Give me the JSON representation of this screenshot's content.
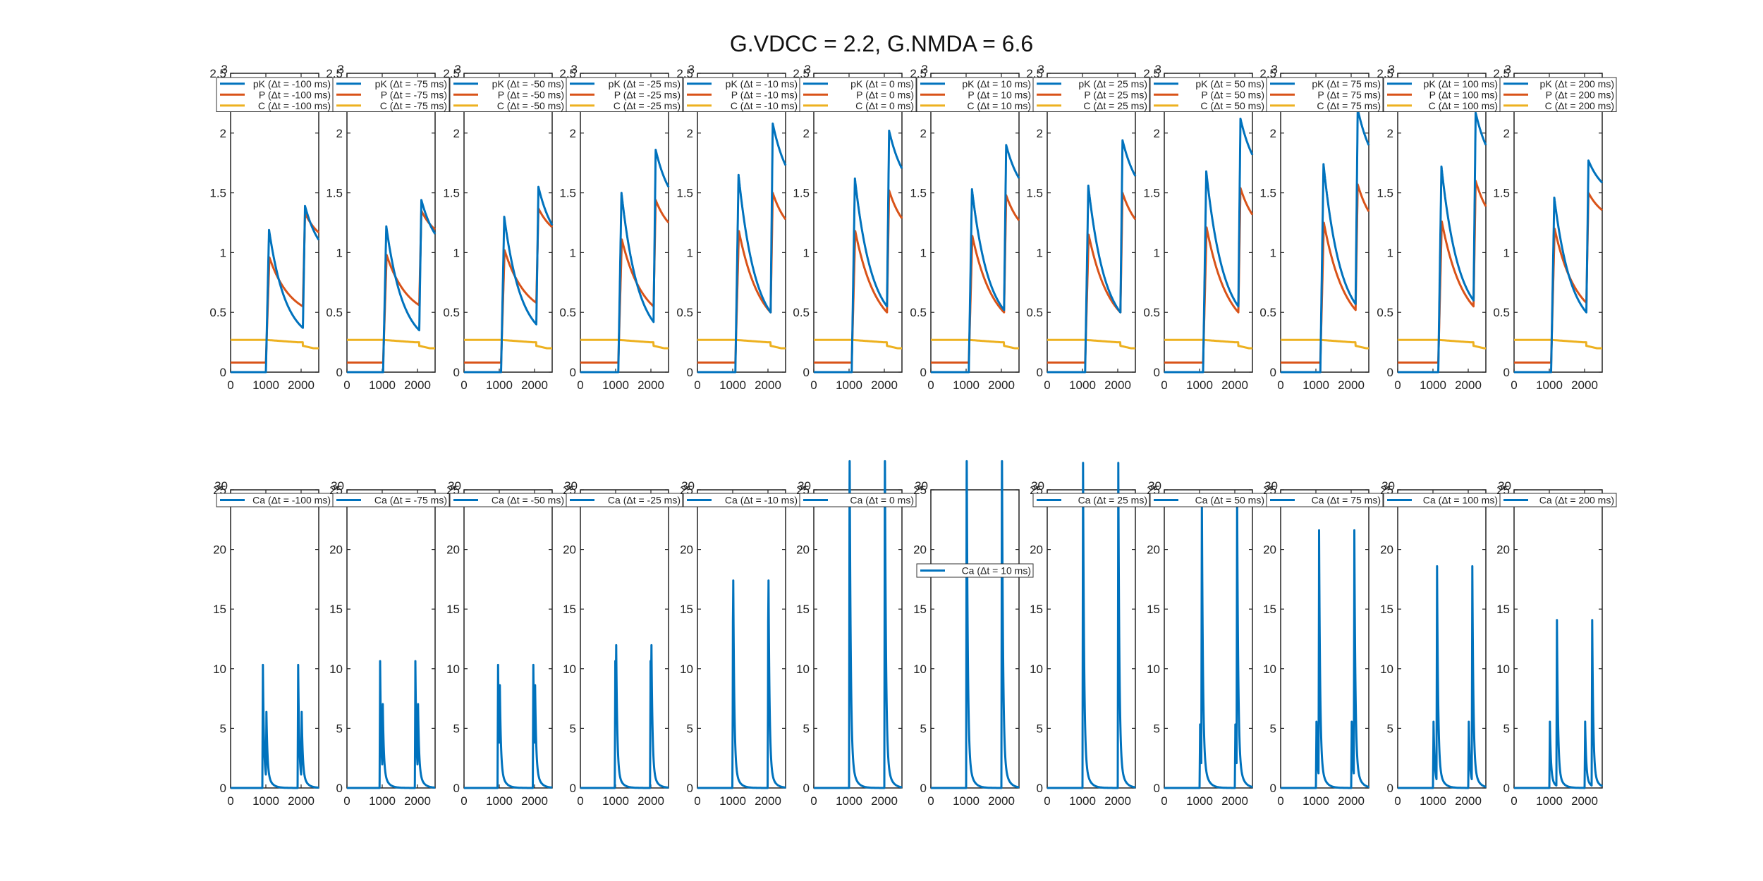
{
  "figure": {
    "title": "G.VDCC = 2.2, G.NMDA = 6.6",
    "colors": {
      "pK": "#0072BD",
      "P": "#D95319",
      "C": "#EDB120",
      "Ca": "#0072BD",
      "axis": "#222222",
      "background": "#ffffff"
    }
  },
  "chart_data": [
    {
      "type": "line",
      "row": "top",
      "title": "",
      "xlabel": "",
      "ylabel": "",
      "xlim": [
        0,
        2500
      ],
      "ylim": [
        0,
        2.5
      ],
      "xticks": [
        0,
        1000,
        2000
      ],
      "yticks": [
        0,
        0.5,
        1,
        1.5,
        2,
        2.5
      ],
      "ytick_labels": [
        "0",
        "0.5",
        "1",
        "1.5",
        "2",
        "2.5"
      ],
      "overflow_label": "3",
      "legend_placement": "top",
      "grid": false,
      "panels": [
        {
          "dt": -100,
          "legend": [
            "pK (Δt = -100 ms)",
            "P (Δt = -100 ms)",
            "C (Δt = -100 ms)"
          ],
          "pK": {
            "pre": 0.0,
            "peak1": 1.19,
            "dip": 0.37,
            "peak2": 1.39,
            "end": 0.9
          },
          "P": {
            "pre": 0.08,
            "peak1": 0.96,
            "dip": 0.55,
            "peak2": 1.33,
            "end": 1.05
          },
          "C": {
            "pre": 0.27,
            "mid": 0.22,
            "end": 0.2
          },
          "spike1": 1000,
          "spike2": 2050
        },
        {
          "dt": -75,
          "legend": [
            "pK (Δt = -75 ms)",
            "P (Δt = -75 ms)",
            "C (Δt = -75 ms)"
          ],
          "pK": {
            "pre": 0.0,
            "peak1": 1.22,
            "dip": 0.35,
            "peak2": 1.44,
            "end": 0.95
          },
          "P": {
            "pre": 0.08,
            "peak1": 0.98,
            "dip": 0.56,
            "peak2": 1.35,
            "end": 1.08
          },
          "C": {
            "pre": 0.27,
            "mid": 0.22,
            "end": 0.2
          },
          "spike1": 1025,
          "spike2": 2050
        },
        {
          "dt": -50,
          "legend": [
            "pK (Δt = -50 ms)",
            "P (Δt = -50 ms)",
            "C (Δt = -50 ms)"
          ],
          "pK": {
            "pre": 0.0,
            "peak1": 1.3,
            "dip": 0.4,
            "peak2": 1.55,
            "end": 1.0
          },
          "P": {
            "pre": 0.08,
            "peak1": 1.02,
            "dip": 0.58,
            "peak2": 1.37,
            "end": 1.1
          },
          "C": {
            "pre": 0.27,
            "mid": 0.22,
            "end": 0.2
          },
          "spike1": 1050,
          "spike2": 2050
        },
        {
          "dt": -25,
          "legend": [
            "pK (Δt = -25 ms)",
            "P (Δt = -25 ms)",
            "C (Δt = -25 ms)"
          ],
          "pK": {
            "pre": 0.0,
            "peak1": 1.5,
            "dip": 0.42,
            "peak2": 1.86,
            "end": 1.3
          },
          "P": {
            "pre": 0.08,
            "peak1": 1.11,
            "dip": 0.55,
            "peak2": 1.44,
            "end": 1.1
          },
          "C": {
            "pre": 0.27,
            "mid": 0.22,
            "end": 0.2
          },
          "spike1": 1075,
          "spike2": 2075
        },
        {
          "dt": -10,
          "legend": [
            "pK (Δt = -10 ms)",
            "P (Δt = -10 ms)",
            "C (Δt = -10 ms)"
          ],
          "pK": {
            "pre": 0.0,
            "peak1": 1.65,
            "dip": 0.5,
            "peak2": 2.08,
            "end": 1.45
          },
          "P": {
            "pre": 0.08,
            "peak1": 1.18,
            "dip": 0.5,
            "peak2": 1.5,
            "end": 1.1
          },
          "C": {
            "pre": 0.27,
            "mid": 0.22,
            "end": 0.2
          },
          "spike1": 1075,
          "spike2": 2075
        },
        {
          "dt": 0,
          "legend": [
            "pK (Δt = 0 ms)",
            "P (Δt = 0 ms)",
            "C (Δt = 0 ms)"
          ],
          "pK": {
            "pre": 0.0,
            "peak1": 1.62,
            "dip": 0.55,
            "peak2": 2.02,
            "end": 1.45
          },
          "P": {
            "pre": 0.08,
            "peak1": 1.18,
            "dip": 0.5,
            "peak2": 1.52,
            "end": 1.1
          },
          "C": {
            "pre": 0.27,
            "mid": 0.22,
            "end": 0.2
          },
          "spike1": 1075,
          "spike2": 2075
        },
        {
          "dt": 10,
          "legend": [
            "pK (Δt = 10 ms)",
            "P (Δt = 10 ms)",
            "C (Δt = 10 ms)"
          ],
          "pK": {
            "pre": 0.0,
            "peak1": 1.53,
            "dip": 0.52,
            "peak2": 1.9,
            "end": 1.4
          },
          "P": {
            "pre": 0.08,
            "peak1": 1.14,
            "dip": 0.5,
            "peak2": 1.48,
            "end": 1.1
          },
          "C": {
            "pre": 0.27,
            "mid": 0.22,
            "end": 0.2
          },
          "spike1": 1075,
          "spike2": 2075
        },
        {
          "dt": 25,
          "legend": [
            "pK (Δt = 25 ms)",
            "P (Δt = 25 ms)",
            "C (Δt = 25 ms)"
          ],
          "pK": {
            "pre": 0.0,
            "peak1": 1.56,
            "dip": 0.5,
            "peak2": 1.94,
            "end": 1.4
          },
          "P": {
            "pre": 0.08,
            "peak1": 1.15,
            "dip": 0.5,
            "peak2": 1.5,
            "end": 1.1
          },
          "C": {
            "pre": 0.27,
            "mid": 0.22,
            "end": 0.2
          },
          "spike1": 1075,
          "spike2": 2075
        },
        {
          "dt": 50,
          "legend": [
            "pK (Δt = 50 ms)",
            "P (Δt = 50 ms)",
            "C (Δt = 50 ms)"
          ],
          "pK": {
            "pre": 0.0,
            "peak1": 1.68,
            "dip": 0.55,
            "peak2": 2.12,
            "end": 1.55
          },
          "P": {
            "pre": 0.08,
            "peak1": 1.21,
            "dip": 0.5,
            "peak2": 1.54,
            "end": 1.12
          },
          "C": {
            "pre": 0.27,
            "mid": 0.22,
            "end": 0.2
          },
          "spike1": 1100,
          "spike2": 2100
        },
        {
          "dt": 75,
          "legend": [
            "pK (Δt = 75 ms)",
            "P (Δt = 75 ms)",
            "C (Δt = 75 ms)"
          ],
          "pK": {
            "pre": 0.0,
            "peak1": 1.74,
            "dip": 0.57,
            "peak2": 2.2,
            "end": 1.6
          },
          "P": {
            "pre": 0.08,
            "peak1": 1.25,
            "dip": 0.52,
            "peak2": 1.57,
            "end": 1.12
          },
          "C": {
            "pre": 0.27,
            "mid": 0.22,
            "end": 0.2
          },
          "spike1": 1125,
          "spike2": 2125
        },
        {
          "dt": 100,
          "legend": [
            "pK (Δt = 100 ms)",
            "P (Δt = 100 ms)",
            "C (Δt = 100 ms)"
          ],
          "pK": {
            "pre": 0.0,
            "peak1": 1.72,
            "dip": 0.6,
            "peak2": 2.17,
            "end": 1.6
          },
          "P": {
            "pre": 0.08,
            "peak1": 1.26,
            "dip": 0.55,
            "peak2": 1.6,
            "end": 1.15
          },
          "C": {
            "pre": 0.27,
            "mid": 0.22,
            "end": 0.2
          },
          "spike1": 1150,
          "spike2": 2150
        },
        {
          "dt": 200,
          "legend": [
            "pK (Δt = 200 ms)",
            "P (Δt = 200 ms)",
            "C (Δt = 200 ms)"
          ],
          "pK": {
            "pre": 0.0,
            "peak1": 1.46,
            "dip": 0.5,
            "peak2": 1.77,
            "end": 1.45
          },
          "P": {
            "pre": 0.08,
            "peak1": 1.2,
            "dip": 0.58,
            "peak2": 1.5,
            "end": 1.25
          },
          "C": {
            "pre": 0.27,
            "mid": 0.22,
            "end": 0.2
          },
          "spike1": 1050,
          "spike2": 2050
        }
      ]
    },
    {
      "type": "line",
      "row": "bottom",
      "title": "",
      "xlabel": "",
      "ylabel": "",
      "xlim": [
        0,
        2500
      ],
      "ylim": [
        0,
        25
      ],
      "xticks": [
        0,
        1000,
        2000
      ],
      "yticks": [
        0,
        5,
        10,
        15,
        20,
        25
      ],
      "ytick_labels": [
        "0",
        "5",
        "10",
        "15",
        "20",
        "25"
      ],
      "overflow_label": "30",
      "legend_placement": "top",
      "grid": false,
      "panels": [
        {
          "dt": -100,
          "legend": [
            "Ca (Δt = -100 ms)"
          ],
          "spike1": 1000,
          "spike2": 2000,
          "peak": 9.5,
          "second": 4.8,
          "lag": 100
        },
        {
          "dt": -75,
          "legend": [
            "Ca (Δt = -75 ms)"
          ],
          "spike1": 1000,
          "spike2": 2000,
          "peak": 9.5,
          "second": 4.9,
          "lag": 75
        },
        {
          "dt": -50,
          "legend": [
            "Ca (Δt = -50 ms)"
          ],
          "spike1": 1000,
          "spike2": 2000,
          "peak": 9.5,
          "second": 5.3,
          "lag": 50
        },
        {
          "dt": -25,
          "legend": [
            "Ca (Δt = -25 ms)"
          ],
          "spike1": 1000,
          "spike2": 2000,
          "peak": 9.5,
          "second": 6.5,
          "lag": 25
        },
        {
          "dt": -10,
          "legend": [
            "Ca (Δt = -10 ms)"
          ],
          "spike1": 1000,
          "spike2": 2000,
          "peak": 9.5,
          "second": 9.0,
          "lag": 10
        },
        {
          "dt": 0,
          "legend": [
            "Ca (Δt = 0 ms)"
          ],
          "spike1": 1000,
          "spike2": 2000,
          "peak": 27.2,
          "second": 27.2,
          "lag": 0
        },
        {
          "dt": 10,
          "legend": [
            "Ca (Δt = 10 ms)"
          ],
          "spike1": 1000,
          "spike2": 2000,
          "peak": 27.2,
          "second": 27.2,
          "lag": 10,
          "legend_position": "middle"
        },
        {
          "dt": 25,
          "legend": [
            "Ca (Δt = 25 ms)"
          ],
          "spike1": 1000,
          "spike2": 2000,
          "peak": 25.1,
          "second": 25.1,
          "lag": 25
        },
        {
          "dt": 50,
          "legend": [
            "Ca (Δt = 50 ms)"
          ],
          "spike1": 1000,
          "spike2": 2000,
          "peak": 4.6,
          "second": 21.4,
          "lag": 50
        },
        {
          "dt": 75,
          "legend": [
            "Ca (Δt = 75 ms)"
          ],
          "spike1": 1000,
          "spike2": 2000,
          "peak": 4.8,
          "second": 18.5,
          "lag": 75
        },
        {
          "dt": 100,
          "legend": [
            "Ca (Δt = 100 ms)"
          ],
          "spike1": 1000,
          "spike2": 2000,
          "peak": 4.8,
          "second": 16.6,
          "lag": 100
        },
        {
          "dt": 200,
          "legend": [
            "Ca (Δt = 200 ms)"
          ],
          "spike1": 1000,
          "spike2": 2000,
          "peak": 4.8,
          "second": 12.8,
          "lag": 200
        }
      ]
    }
  ]
}
